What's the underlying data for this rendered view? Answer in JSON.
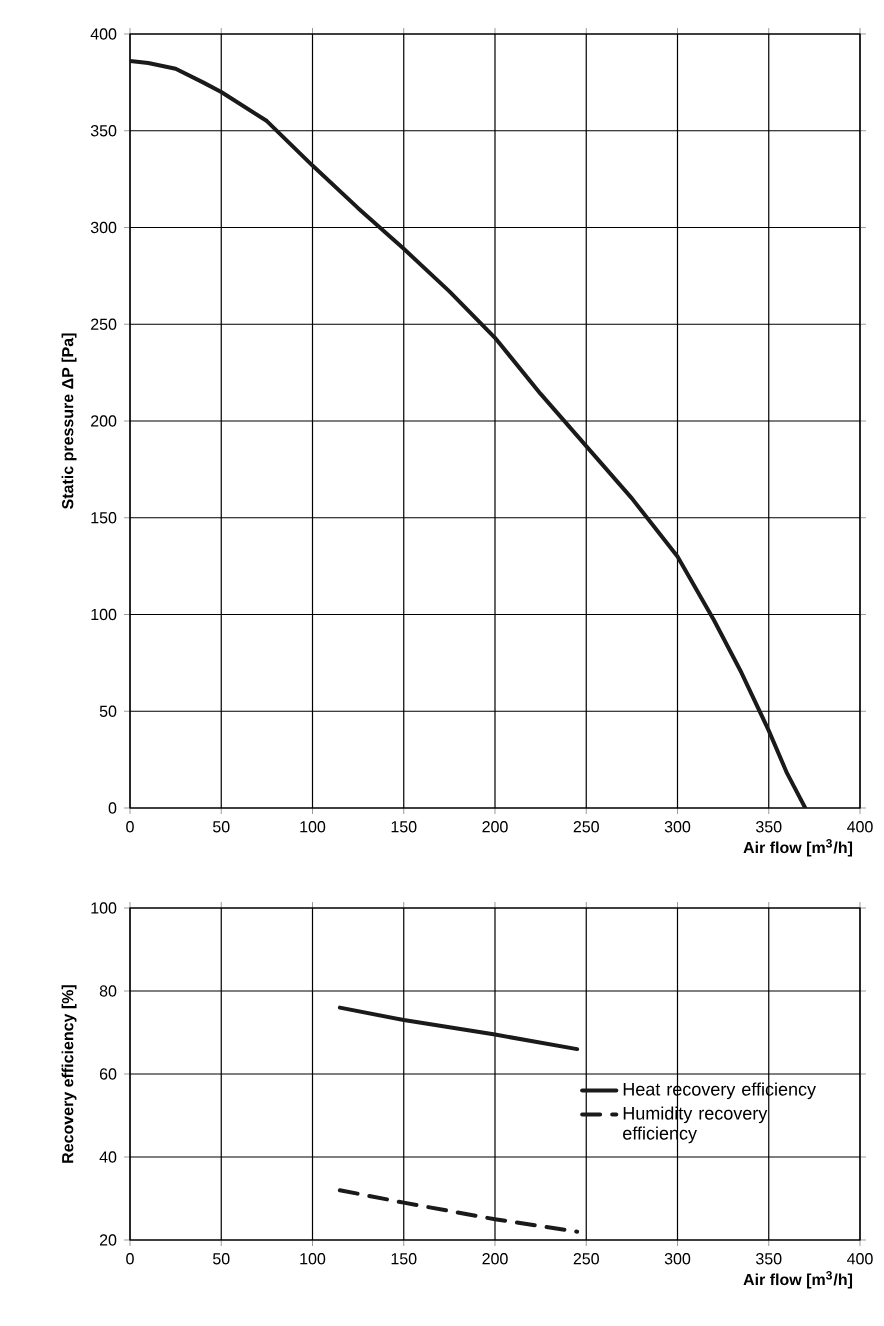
{
  "chart_data": [
    {
      "type": "line",
      "xlabel": "Air flow [m$^{3}$/h]",
      "ylabel": "Static pressure ΔP [Pa]",
      "xlim": [
        0,
        400
      ],
      "ylim": [
        0,
        400
      ],
      "xticks": [
        0,
        50,
        100,
        150,
        200,
        250,
        300,
        350,
        400
      ],
      "yticks": [
        0,
        50,
        100,
        150,
        200,
        250,
        300,
        350,
        400
      ],
      "grid": true,
      "series": [
        {
          "color": "#1a1a1a",
          "line_style": "solid",
          "x": [
            0,
            10,
            25,
            40,
            50,
            75,
            100,
            125,
            150,
            175,
            200,
            225,
            250,
            275,
            300,
            320,
            335,
            350,
            360,
            370
          ],
          "values": [
            386,
            385,
            382,
            375,
            370,
            355,
            332,
            310,
            289,
            267,
            243,
            214,
            187,
            160,
            130,
            97,
            70,
            40,
            18,
            0
          ]
        }
      ]
    },
    {
      "type": "line",
      "xlabel": "Air flow [m$^{3}$/h]",
      "ylabel": "Recovery efficiency [%]",
      "xlim": [
        0,
        400
      ],
      "ylim": [
        20,
        100
      ],
      "xticks": [
        0,
        50,
        100,
        150,
        200,
        250,
        300,
        350,
        400
      ],
      "yticks": [
        20,
        40,
        60,
        80,
        100
      ],
      "grid": true,
      "legend": "right",
      "series": [
        {
          "name": "Heat recovery efficiency",
          "color": "#1a1a1a",
          "line_style": "solid",
          "x": [
            115,
            150,
            200,
            245
          ],
          "values": [
            76,
            73,
            69.5,
            66
          ]
        },
        {
          "name": "Humidity recovery efficiency",
          "color": "#1a1a1a",
          "line_style": "dashed",
          "x": [
            115,
            150,
            200,
            245
          ],
          "values": [
            32,
            29,
            25,
            22
          ]
        }
      ]
    }
  ]
}
